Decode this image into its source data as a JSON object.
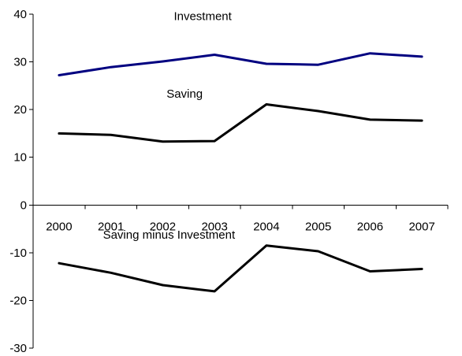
{
  "chart_data": {
    "type": "line",
    "title": "",
    "xlabel": "",
    "ylabel": "",
    "x": [
      "2000",
      "2001",
      "2002",
      "2003",
      "2004",
      "2005",
      "2006",
      "2007"
    ],
    "ylim": [
      -30,
      40
    ],
    "yticks": [
      40,
      30,
      20,
      10,
      0,
      -10,
      -20,
      -30
    ],
    "grid": false,
    "legend": "none",
    "series": [
      {
        "name": "Investment",
        "color": "#000080",
        "values": [
          27.2,
          28.9,
          30.1,
          31.5,
          29.6,
          29.4,
          31.8,
          31.1
        ]
      },
      {
        "name": "Saving",
        "color": "#000000",
        "values": [
          15.0,
          14.7,
          13.3,
          13.4,
          21.1,
          19.7,
          17.9,
          17.7
        ]
      },
      {
        "name": "Saving minus Investment",
        "color": "#000000",
        "values": [
          -12.2,
          -14.2,
          -16.8,
          -18.1,
          -8.5,
          -9.7,
          -13.9,
          -13.4
        ]
      }
    ]
  }
}
